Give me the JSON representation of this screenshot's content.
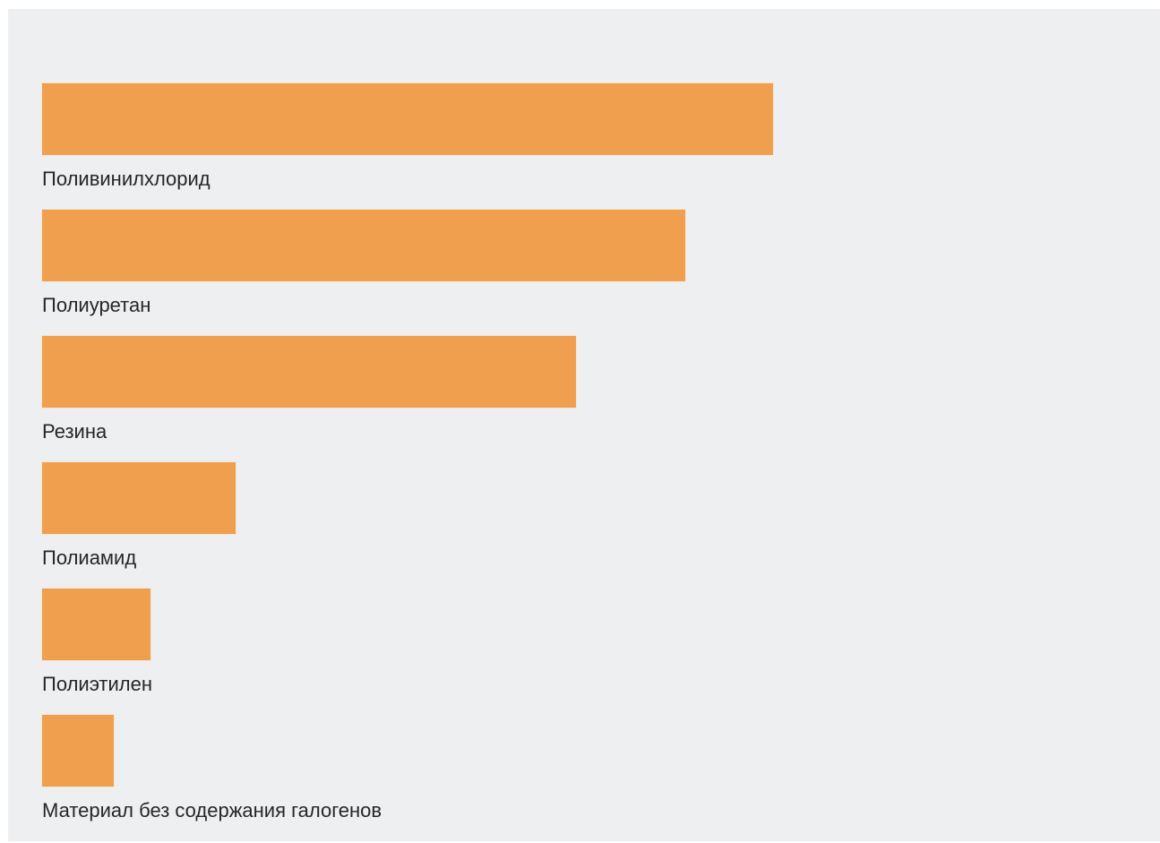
{
  "chart_data": {
    "type": "bar",
    "orientation": "horizontal",
    "categories": [
      "Поливинилхлорид",
      "Полиуретан",
      "Резина",
      "Полиамид",
      "Полиэтилен",
      "Материал без содержания галогенов"
    ],
    "values": [
      100,
      88,
      73,
      26.5,
      14.8,
      9.8
    ],
    "xlim": [
      0,
      100
    ],
    "grid": false,
    "legend": "none",
    "bar_color": "#f09f4f",
    "background_color": "#eeeff1"
  }
}
